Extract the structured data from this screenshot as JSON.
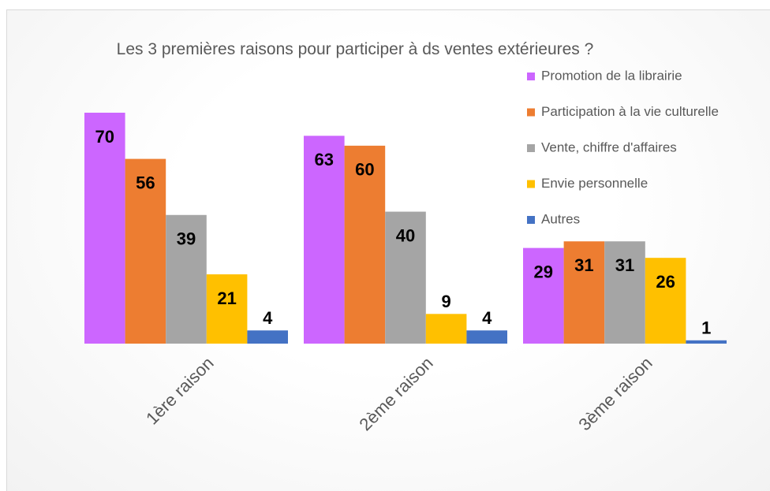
{
  "chart_data": {
    "type": "bar",
    "title": "Les 3 premières raisons pour participer à ds ventes extérieures ?",
    "categories": [
      "1ère raison",
      "2ème raison",
      "3ème raison"
    ],
    "series": [
      {
        "name": "Promotion de la librairie",
        "color": "#cc66ff",
        "values": [
          70,
          63,
          29
        ]
      },
      {
        "name": "Participation à la vie culturelle",
        "color": "#ed7d31",
        "values": [
          56,
          60,
          31
        ]
      },
      {
        "name": "Vente, chiffre d'affaires",
        "color": "#a5a5a5",
        "values": [
          39,
          40,
          31
        ]
      },
      {
        "name": "Envie personnelle",
        "color": "#ffc000",
        "values": [
          21,
          9,
          26
        ]
      },
      {
        "name": "Autres",
        "color": "#4472c4",
        "values": [
          4,
          4,
          1
        ]
      }
    ],
    "legend": "right"
  }
}
